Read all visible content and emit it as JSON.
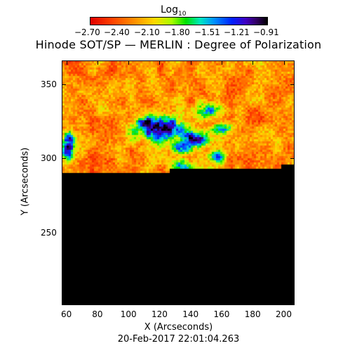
{
  "colorbar": {
    "title": "Log",
    "title_sub": "10",
    "ticks": [
      "−2.70",
      "−2.40",
      "−2.10",
      "−1.80",
      "−1.51",
      "−1.21",
      "−0.91"
    ]
  },
  "title": "Hinode SOT/SP — MERLIN : Degree of Polarization",
  "xaxis": {
    "label": "X (Arcseconds)",
    "ticks": [
      "60",
      "80",
      "100",
      "120",
      "140",
      "160",
      "180",
      "200"
    ],
    "range": [
      57,
      207
    ]
  },
  "yaxis": {
    "label": "Y (Arcseconds)",
    "ticks": [
      "250",
      "300",
      "350"
    ],
    "range": [
      201,
      366
    ]
  },
  "timestamp": "20-Feb-2017 22:01:04.263"
}
